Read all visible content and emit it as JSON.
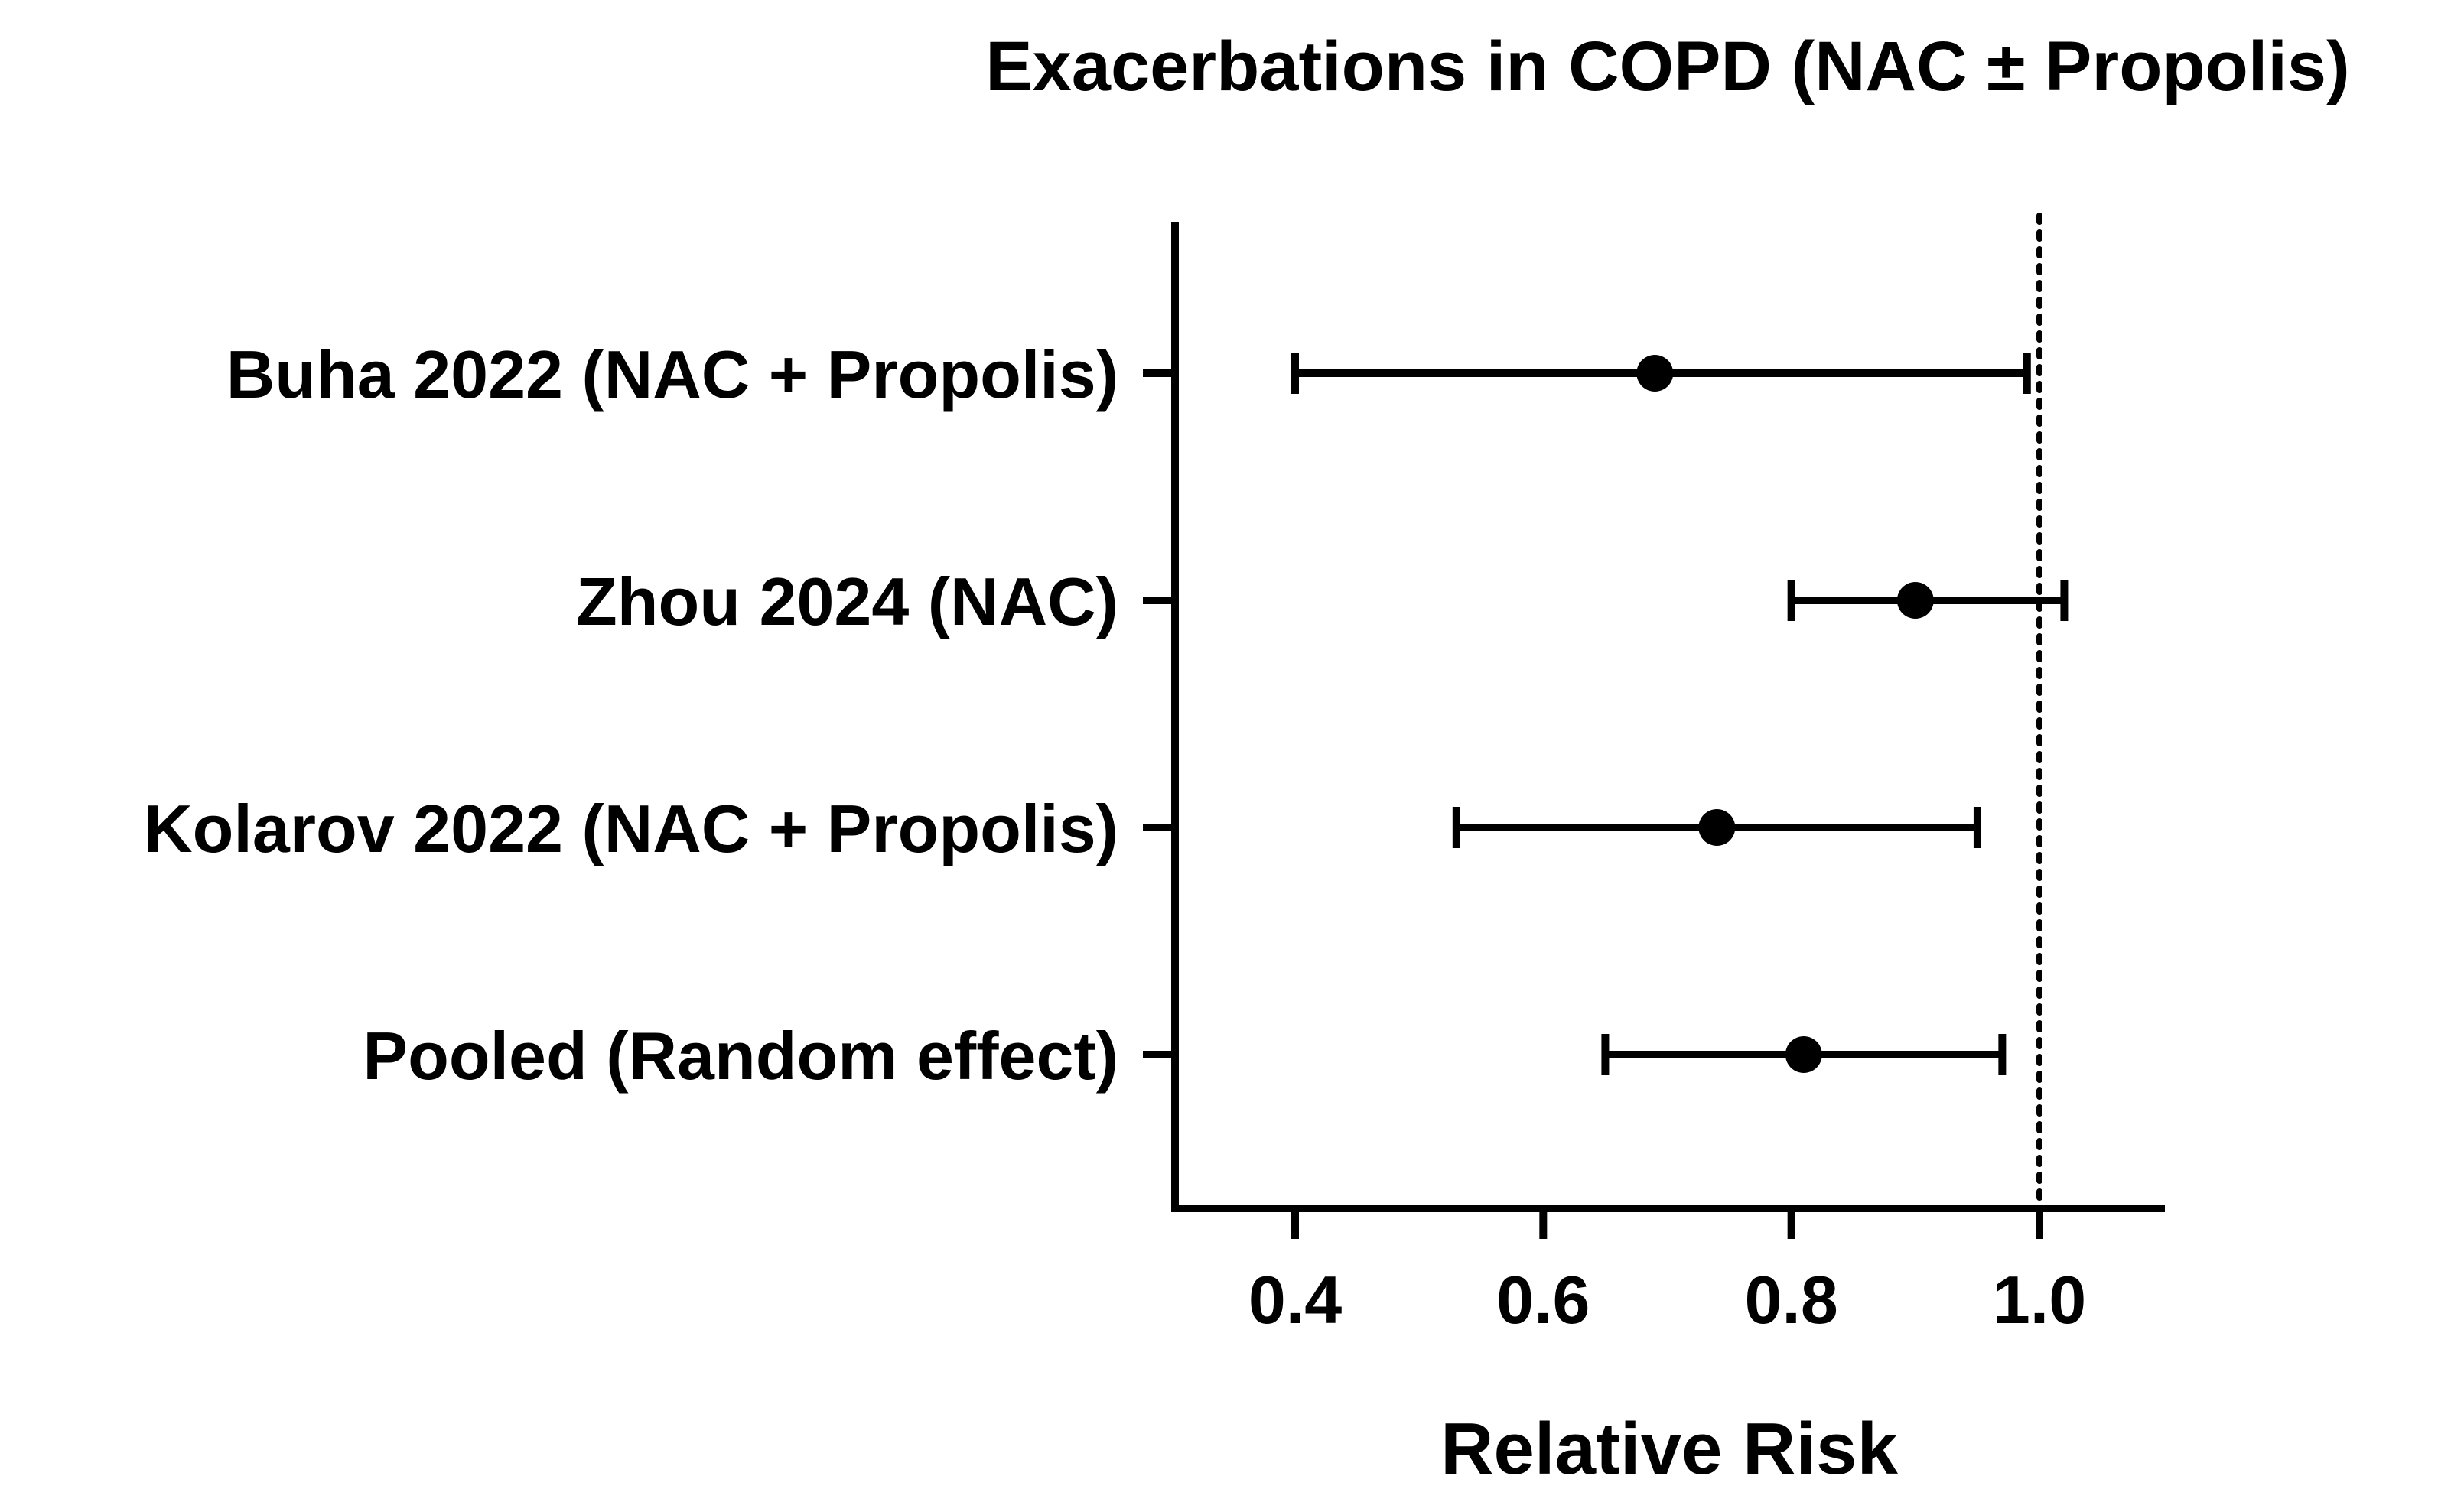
{
  "chart_data": {
    "type": "forest",
    "title": "Exacerbations in COPD (NAC ± Propolis)",
    "xlabel": "Relative Risk",
    "xlim": [
      0.3,
      1.1
    ],
    "xticks": [
      {
        "value": 0.4,
        "label": "0.4"
      },
      {
        "value": 0.6,
        "label": "0.6"
      },
      {
        "value": 0.8,
        "label": "0.8"
      },
      {
        "value": 1.0,
        "label": "1.0"
      }
    ],
    "reference_line": 1.0,
    "studies": [
      {
        "label": "Buha 2022 (NAC + Propolis)",
        "estimate": 0.69,
        "lower": 0.4,
        "upper": 0.99
      },
      {
        "label": "Zhou 2024 (NAC)",
        "estimate": 0.9,
        "lower": 0.8,
        "upper": 1.02
      },
      {
        "label": "Kolarov 2022 (NAC + Propolis)",
        "estimate": 0.74,
        "lower": 0.53,
        "upper": 0.95
      },
      {
        "label": "Pooled (Random effect)",
        "estimate": 0.81,
        "lower": 0.65,
        "upper": 0.97
      }
    ],
    "grid": false,
    "legend": "none",
    "colors": {
      "ink": "#000000",
      "background": "#ffffff"
    }
  }
}
